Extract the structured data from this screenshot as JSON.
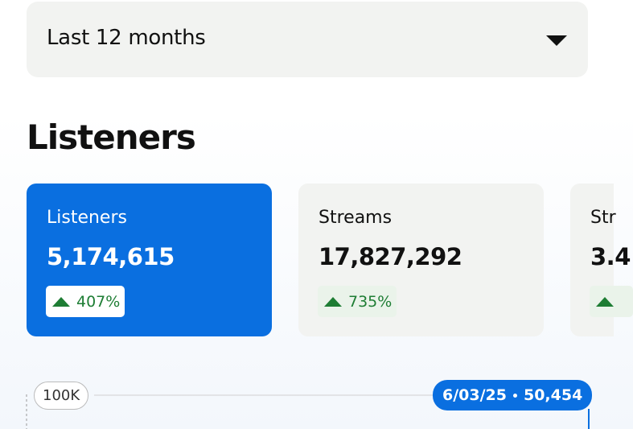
{
  "filter": {
    "label": "Last 12 months"
  },
  "section": {
    "title": "Listeners"
  },
  "cards": [
    {
      "label": "Listeners",
      "value": "5,174,615",
      "change": "407%"
    },
    {
      "label": "Streams",
      "value": "17,827,292",
      "change": "735%"
    },
    {
      "label": "Str",
      "value": "3.4"
    }
  ],
  "chart": {
    "axis_label": "100K",
    "tooltip": {
      "date": "6/03/25",
      "value": "50,454"
    }
  }
}
